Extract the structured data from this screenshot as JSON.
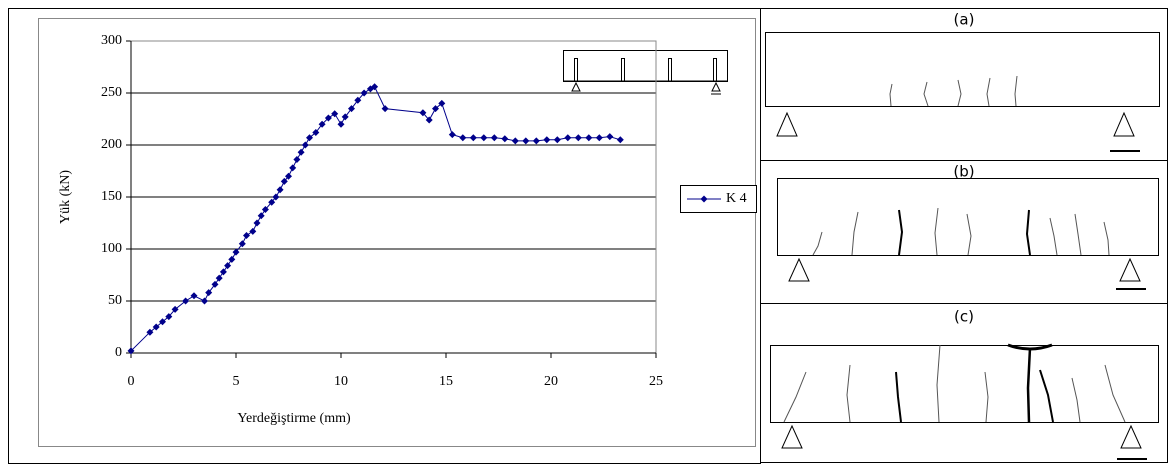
{
  "chart_data": {
    "type": "line",
    "xlabel": "Yerdeğiştirme (mm)",
    "ylabel": "Yük (kN)",
    "x": [
      0,
      0.9,
      1.2,
      1.5,
      1.8,
      2.1,
      2.6,
      3.0,
      3.5,
      3.7,
      4.0,
      4.2,
      4.4,
      4.6,
      4.8,
      5.0,
      5.3,
      5.5,
      5.8,
      6.0,
      6.2,
      6.4,
      6.7,
      6.9,
      7.1,
      7.3,
      7.5,
      7.7,
      7.9,
      8.1,
      8.3,
      8.5,
      8.8,
      9.1,
      9.4,
      9.7,
      10.0,
      10.2,
      10.5,
      10.8,
      11.1,
      11.4,
      11.6,
      12.1,
      13.9,
      14.2,
      14.5,
      14.8,
      15.3,
      15.8,
      16.3,
      16.8,
      17.3,
      17.8,
      18.3,
      18.8,
      19.3,
      19.8,
      20.3,
      20.8,
      21.3,
      21.8,
      22.3,
      22.8,
      23.3
    ],
    "series": [
      {
        "name": "K 4",
        "color": "#00008b",
        "values": [
          2,
          20,
          25,
          30,
          35,
          42,
          50,
          55,
          50,
          58,
          66,
          72,
          78,
          84,
          90,
          97,
          105,
          113,
          117,
          125,
          132,
          138,
          145,
          150,
          157,
          165,
          170,
          178,
          186,
          193,
          200,
          207,
          212,
          220,
          226,
          230,
          220,
          227,
          235,
          243,
          250,
          254,
          256,
          235,
          231,
          224,
          235,
          240,
          210,
          207,
          207,
          207,
          207,
          206,
          204,
          204,
          204,
          205,
          205,
          207,
          207,
          207,
          207,
          208,
          205
        ]
      }
    ],
    "xlim": [
      0,
      25
    ],
    "ylim": [
      0,
      300
    ],
    "xticks": [
      0,
      5,
      10,
      15,
      20,
      25
    ],
    "yticks": [
      0,
      50,
      100,
      150,
      200,
      250,
      300
    ],
    "grid": true,
    "legend": "right"
  },
  "panels": [
    {
      "label": "(a)"
    },
    {
      "label": "(b)"
    },
    {
      "label": "(c)"
    }
  ]
}
